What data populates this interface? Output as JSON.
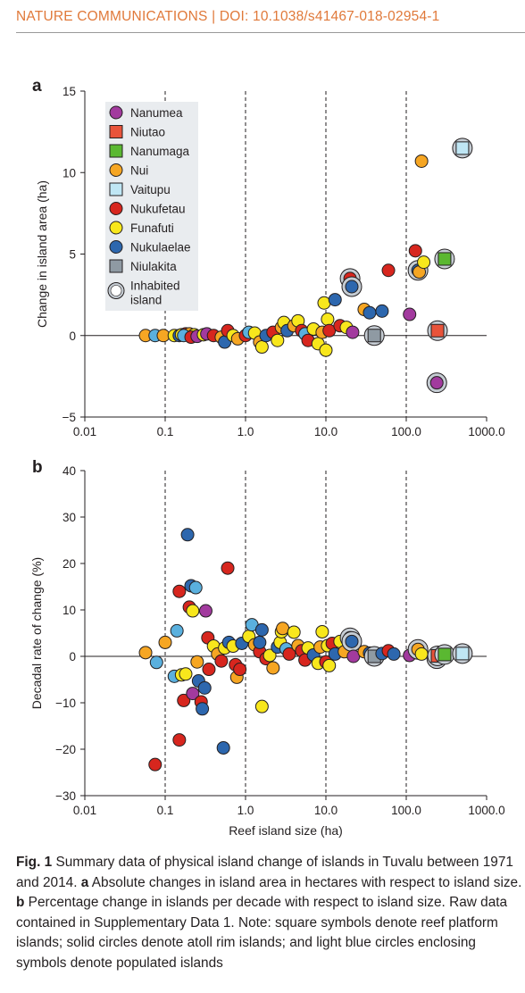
{
  "header": {
    "journal": "NATURE COMMUNICATIONS | DOI: 10.1038/s41467-018-02954-1"
  },
  "panels": [
    {
      "letter": "a",
      "ylabel": "Change in island area (ha)",
      "xlabel": ""
    },
    {
      "letter": "b",
      "ylabel": "Decadal rate of change (%)",
      "xlabel": "Reef island size (ha)"
    }
  ],
  "legend": [
    {
      "label": "Nanumea",
      "shape": "circle",
      "color": "#a23a9e"
    },
    {
      "label": "Niutao",
      "shape": "square",
      "color": "#e8533a"
    },
    {
      "label": "Nanumaga",
      "shape": "square",
      "color": "#5ab831"
    },
    {
      "label": "Nui",
      "shape": "circle",
      "color": "#f6a623"
    },
    {
      "label": "Vaitupu",
      "shape": "square",
      "color": "#bfe6f4"
    },
    {
      "label": "Nukufetau",
      "shape": "circle",
      "color": "#d7261e"
    },
    {
      "label": "Funafuti",
      "shape": "circle",
      "color": "#f8e71c"
    },
    {
      "label": "Nukulaelae",
      "shape": "circle",
      "color": "#2d67ae"
    },
    {
      "label": "Niulakita",
      "shape": "square",
      "color": "#8f9aa3"
    },
    {
      "label": "Inhabited\nisland",
      "shape": "ring",
      "color": "#c5ccd3"
    }
  ],
  "colors": {
    "Nanumea": "#a23a9e",
    "Niutao": "#e8533a",
    "Nanumaga": "#5ab831",
    "Nui": "#f6a623",
    "Vaitupu": "#bfe6f4",
    "Nukufetau": "#d7261e",
    "Funafuti": "#f8e71c",
    "Nukulaelae": "#2d67ae",
    "Nukulaelae_light": "#5ab0de",
    "Niulakita": "#8f9aa3",
    "inhabited_ring": "#c5ccd3",
    "legend_bg": "#e9ecef",
    "accent": "#e0793a"
  },
  "chart_data": [
    {
      "type": "scatter",
      "title": "",
      "xlabel": "",
      "ylabel": "Change in island area (ha)",
      "xscale": "log",
      "xlim": [
        0.01,
        1000
      ],
      "ylim": [
        -5,
        15
      ],
      "xticks": [
        "0.01",
        "0.1",
        "1.0",
        "10.0",
        "100.0",
        "1000.0"
      ],
      "yticks": [
        "−5",
        "0",
        "5",
        "10",
        "15"
      ],
      "dashed_vertical_lines": [
        0.1,
        1,
        10,
        100
      ],
      "zero_line": true,
      "legend_position": "top-left",
      "points": [
        {
          "x": 0.057,
          "y": 0.0,
          "c": "Nui"
        },
        {
          "x": 0.075,
          "y": 0.0,
          "c": "Nukulaelae_light"
        },
        {
          "x": 0.095,
          "y": 0.0,
          "c": "Nui"
        },
        {
          "x": 0.13,
          "y": 0.0,
          "c": "Funafuti"
        },
        {
          "x": 0.15,
          "y": 0.0,
          "c": "Nukulaelae"
        },
        {
          "x": 0.16,
          "y": 0.05,
          "c": "Funafuti"
        },
        {
          "x": 0.18,
          "y": 0.1,
          "c": "Nukufetau"
        },
        {
          "x": 0.2,
          "y": 0.1,
          "c": "Nui"
        },
        {
          "x": 0.23,
          "y": 0.05,
          "c": "Funafuti"
        },
        {
          "x": 0.17,
          "y": 0.0,
          "c": "Nukulaelae_light"
        },
        {
          "x": 0.21,
          "y": -0.1,
          "c": "Nukufetau"
        },
        {
          "x": 0.25,
          "y": -0.05,
          "c": "Nanumea"
        },
        {
          "x": 0.3,
          "y": 0.05,
          "c": "Funafuti"
        },
        {
          "x": 0.33,
          "y": 0.1,
          "c": "Nanumea"
        },
        {
          "x": 0.4,
          "y": 0.0,
          "c": "Nukufetau"
        },
        {
          "x": 0.5,
          "y": -0.1,
          "c": "Nui"
        },
        {
          "x": 0.55,
          "y": -0.4,
          "c": "Nukulaelae"
        },
        {
          "x": 0.6,
          "y": 0.3,
          "c": "Nukufetau"
        },
        {
          "x": 0.7,
          "y": 0.0,
          "c": "Funafuti"
        },
        {
          "x": 0.8,
          "y": -0.2,
          "c": "Nui"
        },
        {
          "x": 1.0,
          "y": 0.0,
          "c": "Nukufetau"
        },
        {
          "x": 1.1,
          "y": 0.2,
          "c": "Nukulaelae_light"
        },
        {
          "x": 1.3,
          "y": 0.15,
          "c": "Funafuti"
        },
        {
          "x": 1.5,
          "y": -0.4,
          "c": "Nui"
        },
        {
          "x": 1.6,
          "y": -0.7,
          "c": "Funafuti"
        },
        {
          "x": 1.8,
          "y": 0.0,
          "c": "Nukulaelae"
        },
        {
          "x": 2.2,
          "y": 0.2,
          "c": "Nukufetau"
        },
        {
          "x": 2.5,
          "y": -0.3,
          "c": "Funafuti"
        },
        {
          "x": 2.8,
          "y": 0.5,
          "c": "Nui"
        },
        {
          "x": 3.0,
          "y": 0.8,
          "c": "Funafuti"
        },
        {
          "x": 3.3,
          "y": 0.3,
          "c": "Nukulaelae"
        },
        {
          "x": 4.0,
          "y": 0.6,
          "c": "Nui"
        },
        {
          "x": 4.5,
          "y": 0.9,
          "c": "Funafuti"
        },
        {
          "x": 5.0,
          "y": 0.3,
          "c": "Nukufetau"
        },
        {
          "x": 5.5,
          "y": 0.1,
          "c": "Nukulaelae_light"
        },
        {
          "x": 6.0,
          "y": -0.3,
          "c": "Nukufetau"
        },
        {
          "x": 7.0,
          "y": 0.4,
          "c": "Funafuti"
        },
        {
          "x": 8.0,
          "y": -0.5,
          "c": "Funafuti"
        },
        {
          "x": 9.0,
          "y": 0.2,
          "c": "Nui"
        },
        {
          "x": 10.0,
          "y": -0.9,
          "c": "Funafuti"
        },
        {
          "x": 10.5,
          "y": 1.0,
          "c": "Funafuti"
        },
        {
          "x": 11.0,
          "y": 0.3,
          "c": "Nukufetau"
        },
        {
          "x": 9.5,
          "y": 2.0,
          "c": "Funafuti"
        },
        {
          "x": 13.0,
          "y": 2.2,
          "c": "Nukulaelae"
        },
        {
          "x": 15.0,
          "y": 0.6,
          "c": "Nukufetau"
        },
        {
          "x": 18.0,
          "y": 0.5,
          "c": "Funafuti"
        },
        {
          "x": 20.0,
          "y": 3.5,
          "c": "Nukufetau",
          "ring": true
        },
        {
          "x": 21.0,
          "y": 3.0,
          "c": "Nukulaelae",
          "ring": true
        },
        {
          "x": 21.5,
          "y": 0.2,
          "c": "Nanumea"
        },
        {
          "x": 30.0,
          "y": 1.6,
          "c": "Nui"
        },
        {
          "x": 35.0,
          "y": 1.4,
          "c": "Nukulaelae"
        },
        {
          "x": 40.0,
          "y": 0.0,
          "c": "Niulakita",
          "sq": true,
          "ring": true
        },
        {
          "x": 50.0,
          "y": 1.5,
          "c": "Nukulaelae"
        },
        {
          "x": 60.0,
          "y": 4.0,
          "c": "Nukufetau"
        },
        {
          "x": 110.0,
          "y": 1.3,
          "c": "Nanumea"
        },
        {
          "x": 130.0,
          "y": 5.2,
          "c": "Nukufetau"
        },
        {
          "x": 140.0,
          "y": 4.0,
          "c": "Nukulaelae",
          "ring": true
        },
        {
          "x": 145.0,
          "y": 3.9,
          "c": "Nui"
        },
        {
          "x": 155.0,
          "y": 10.7,
          "c": "Nui"
        },
        {
          "x": 165.0,
          "y": 4.5,
          "c": "Funafuti"
        },
        {
          "x": 240.0,
          "y": -2.9,
          "c": "Nanumea",
          "ring": true
        },
        {
          "x": 245.0,
          "y": 0.3,
          "c": "Niutao",
          "sq": true,
          "ring": true
        },
        {
          "x": 300.0,
          "y": 4.7,
          "c": "Nanumaga",
          "sq": true,
          "ring": true
        },
        {
          "x": 500.0,
          "y": 11.5,
          "c": "Vaitupu",
          "sq": true,
          "ring": true
        }
      ]
    },
    {
      "type": "scatter",
      "title": "",
      "xlabel": "Reef island size (ha)",
      "ylabel": "Decadal rate of change (%)",
      "xscale": "log",
      "xlim": [
        0.01,
        1000
      ],
      "ylim": [
        -30,
        40
      ],
      "xticks": [
        "0.01",
        "0.1",
        "1.0",
        "10.0",
        "100.0",
        "1000.0"
      ],
      "yticks": [
        "−30",
        "−20",
        "−10",
        "0",
        "10",
        "20",
        "30",
        "40"
      ],
      "dashed_vertical_lines": [
        0.1,
        1,
        10,
        100
      ],
      "zero_line": true,
      "points": [
        {
          "x": 0.057,
          "y": 0.8,
          "c": "Nui"
        },
        {
          "x": 0.075,
          "y": -23.3,
          "c": "Nukufetau"
        },
        {
          "x": 0.078,
          "y": -1.3,
          "c": "Nukulaelae_light"
        },
        {
          "x": 0.1,
          "y": 3.0,
          "c": "Nui"
        },
        {
          "x": 0.13,
          "y": -4.3,
          "c": "Nukulaelae_light"
        },
        {
          "x": 0.14,
          "y": 5.5,
          "c": "Nukulaelae_light"
        },
        {
          "x": 0.15,
          "y": 14.0,
          "c": "Nukufetau"
        },
        {
          "x": 0.15,
          "y": -18.0,
          "c": "Nukufetau"
        },
        {
          "x": 0.16,
          "y": -4.0,
          "c": "Funafuti"
        },
        {
          "x": 0.17,
          "y": -9.5,
          "c": "Nukufetau"
        },
        {
          "x": 0.18,
          "y": -3.8,
          "c": "Funafuti"
        },
        {
          "x": 0.19,
          "y": 26.2,
          "c": "Nukulaelae"
        },
        {
          "x": 0.2,
          "y": 10.6,
          "c": "Nukufetau"
        },
        {
          "x": 0.21,
          "y": 15.2,
          "c": "Nukulaelae"
        },
        {
          "x": 0.22,
          "y": 9.8,
          "c": "Funafuti"
        },
        {
          "x": 0.22,
          "y": -8.0,
          "c": "Nanumea"
        },
        {
          "x": 0.24,
          "y": 14.8,
          "c": "Nukulaelae_light"
        },
        {
          "x": 0.25,
          "y": -1.2,
          "c": "Nui"
        },
        {
          "x": 0.26,
          "y": -5.3,
          "c": "Nukulaelae"
        },
        {
          "x": 0.28,
          "y": -9.8,
          "c": "Nukufetau"
        },
        {
          "x": 0.29,
          "y": -11.3,
          "c": "Nukulaelae"
        },
        {
          "x": 0.31,
          "y": -6.8,
          "c": "Nukulaelae"
        },
        {
          "x": 0.32,
          "y": 9.8,
          "c": "Nanumea"
        },
        {
          "x": 0.34,
          "y": 4.0,
          "c": "Nukufetau"
        },
        {
          "x": 0.35,
          "y": -2.8,
          "c": "Nukufetau"
        },
        {
          "x": 0.4,
          "y": 2.2,
          "c": "Funafuti"
        },
        {
          "x": 0.45,
          "y": 0.5,
          "c": "Nui"
        },
        {
          "x": 0.5,
          "y": -1.0,
          "c": "Nukufetau"
        },
        {
          "x": 0.53,
          "y": -19.7,
          "c": "Nukulaelae"
        },
        {
          "x": 0.55,
          "y": 1.8,
          "c": "Funafuti"
        },
        {
          "x": 0.6,
          "y": 19.0,
          "c": "Nukufetau"
        },
        {
          "x": 0.62,
          "y": 3.0,
          "c": "Nukulaelae"
        },
        {
          "x": 0.7,
          "y": 2.2,
          "c": "Funafuti"
        },
        {
          "x": 0.75,
          "y": -1.8,
          "c": "Nukufetau"
        },
        {
          "x": 0.78,
          "y": -4.5,
          "c": "Nui"
        },
        {
          "x": 0.85,
          "y": -2.8,
          "c": "Nukufetau"
        },
        {
          "x": 0.9,
          "y": 2.8,
          "c": "Nukulaelae"
        },
        {
          "x": 1.1,
          "y": 4.3,
          "c": "Funafuti"
        },
        {
          "x": 1.2,
          "y": 6.8,
          "c": "Nukulaelae_light"
        },
        {
          "x": 1.3,
          "y": 2.5,
          "c": "Nui"
        },
        {
          "x": 1.5,
          "y": 1.0,
          "c": "Nukufetau"
        },
        {
          "x": 1.5,
          "y": 3.0,
          "c": "Nukulaelae"
        },
        {
          "x": 1.6,
          "y": 5.7,
          "c": "Nukulaelae"
        },
        {
          "x": 1.6,
          "y": -10.8,
          "c": "Funafuti"
        },
        {
          "x": 1.8,
          "y": -0.5,
          "c": "Nukufetau"
        },
        {
          "x": 2.0,
          "y": 0.2,
          "c": "Funafuti"
        },
        {
          "x": 2.2,
          "y": -2.5,
          "c": "Nui"
        },
        {
          "x": 2.5,
          "y": 2.0,
          "c": "Nukulaelae"
        },
        {
          "x": 2.7,
          "y": 3.0,
          "c": "Funafuti"
        },
        {
          "x": 2.8,
          "y": 5.3,
          "c": "Funafuti"
        },
        {
          "x": 2.9,
          "y": 6.0,
          "c": "Nui"
        },
        {
          "x": 3.2,
          "y": 1.6,
          "c": "Nukulaelae_light"
        },
        {
          "x": 3.5,
          "y": 0.5,
          "c": "Nukufetau"
        },
        {
          "x": 4.0,
          "y": 5.2,
          "c": "Funafuti"
        },
        {
          "x": 4.5,
          "y": 2.3,
          "c": "Nui"
        },
        {
          "x": 5.0,
          "y": 1.2,
          "c": "Nukufetau"
        },
        {
          "x": 5.5,
          "y": -0.8,
          "c": "Nukufetau"
        },
        {
          "x": 6.0,
          "y": 1.8,
          "c": "Funafuti"
        },
        {
          "x": 7.0,
          "y": 0.3,
          "c": "Nukulaelae"
        },
        {
          "x": 8.0,
          "y": -1.5,
          "c": "Funafuti"
        },
        {
          "x": 8.5,
          "y": 2.0,
          "c": "Nui"
        },
        {
          "x": 9.0,
          "y": 5.3,
          "c": "Funafuti"
        },
        {
          "x": 10.0,
          "y": -1.2,
          "c": "Nukufetau"
        },
        {
          "x": 10.5,
          "y": 2.3,
          "c": "Funafuti"
        },
        {
          "x": 11.0,
          "y": -2.0,
          "c": "Funafuti"
        },
        {
          "x": 12.0,
          "y": 2.8,
          "c": "Nukufetau"
        },
        {
          "x": 13.0,
          "y": 0.5,
          "c": "Nukulaelae"
        },
        {
          "x": 15.0,
          "y": 3.2,
          "c": "Funafuti"
        },
        {
          "x": 17.0,
          "y": 1.0,
          "c": "Nui"
        },
        {
          "x": 20.0,
          "y": 4.0,
          "c": "Nukufetau",
          "ring": true
        },
        {
          "x": 21.0,
          "y": 3.2,
          "c": "Nukulaelae",
          "ring": true
        },
        {
          "x": 22.0,
          "y": 0.0,
          "c": "Nanumea"
        },
        {
          "x": 30.0,
          "y": 1.0,
          "c": "Nui"
        },
        {
          "x": 35.0,
          "y": 0.7,
          "c": "Nukulaelae"
        },
        {
          "x": 40.0,
          "y": 0.0,
          "c": "Niulakita",
          "sq": true,
          "ring": true
        },
        {
          "x": 50.0,
          "y": 0.6,
          "c": "Nukulaelae"
        },
        {
          "x": 60.0,
          "y": 1.2,
          "c": "Nukufetau"
        },
        {
          "x": 70.0,
          "y": 0.5,
          "c": "Nukulaelae"
        },
        {
          "x": 110.0,
          "y": 0.2,
          "c": "Nanumea"
        },
        {
          "x": 130.0,
          "y": 1.0,
          "c": "Nukufetau"
        },
        {
          "x": 140.0,
          "y": 1.5,
          "c": "Nui",
          "ring": true
        },
        {
          "x": 155.0,
          "y": 0.5,
          "c": "Funafuti"
        },
        {
          "x": 240.0,
          "y": -0.5,
          "c": "Nanumea",
          "ring": true
        },
        {
          "x": 245.0,
          "y": 0.1,
          "c": "Niutao",
          "sq": true,
          "ring": true
        },
        {
          "x": 300.0,
          "y": 0.4,
          "c": "Nanumaga",
          "sq": true,
          "ring": true
        },
        {
          "x": 500.0,
          "y": 0.6,
          "c": "Vaitupu",
          "sq": true,
          "ring": true
        }
      ]
    }
  ],
  "caption": {
    "label": "Fig. 1",
    "text1": " Summary data of physical island change of islands in Tuvalu between 1971 and 2014. ",
    "a_label": "a",
    "text2": " Absolute changes in island area in hectares with respect to island size. ",
    "b_label": "b",
    "text3": " Percentage change in islands per decade with respect to island size. Raw data contained in Supplementary Data 1. Note: square symbols denote reef platform islands; solid circles denote atoll rim islands; and light blue circles enclosing symbols denote populated islands"
  }
}
